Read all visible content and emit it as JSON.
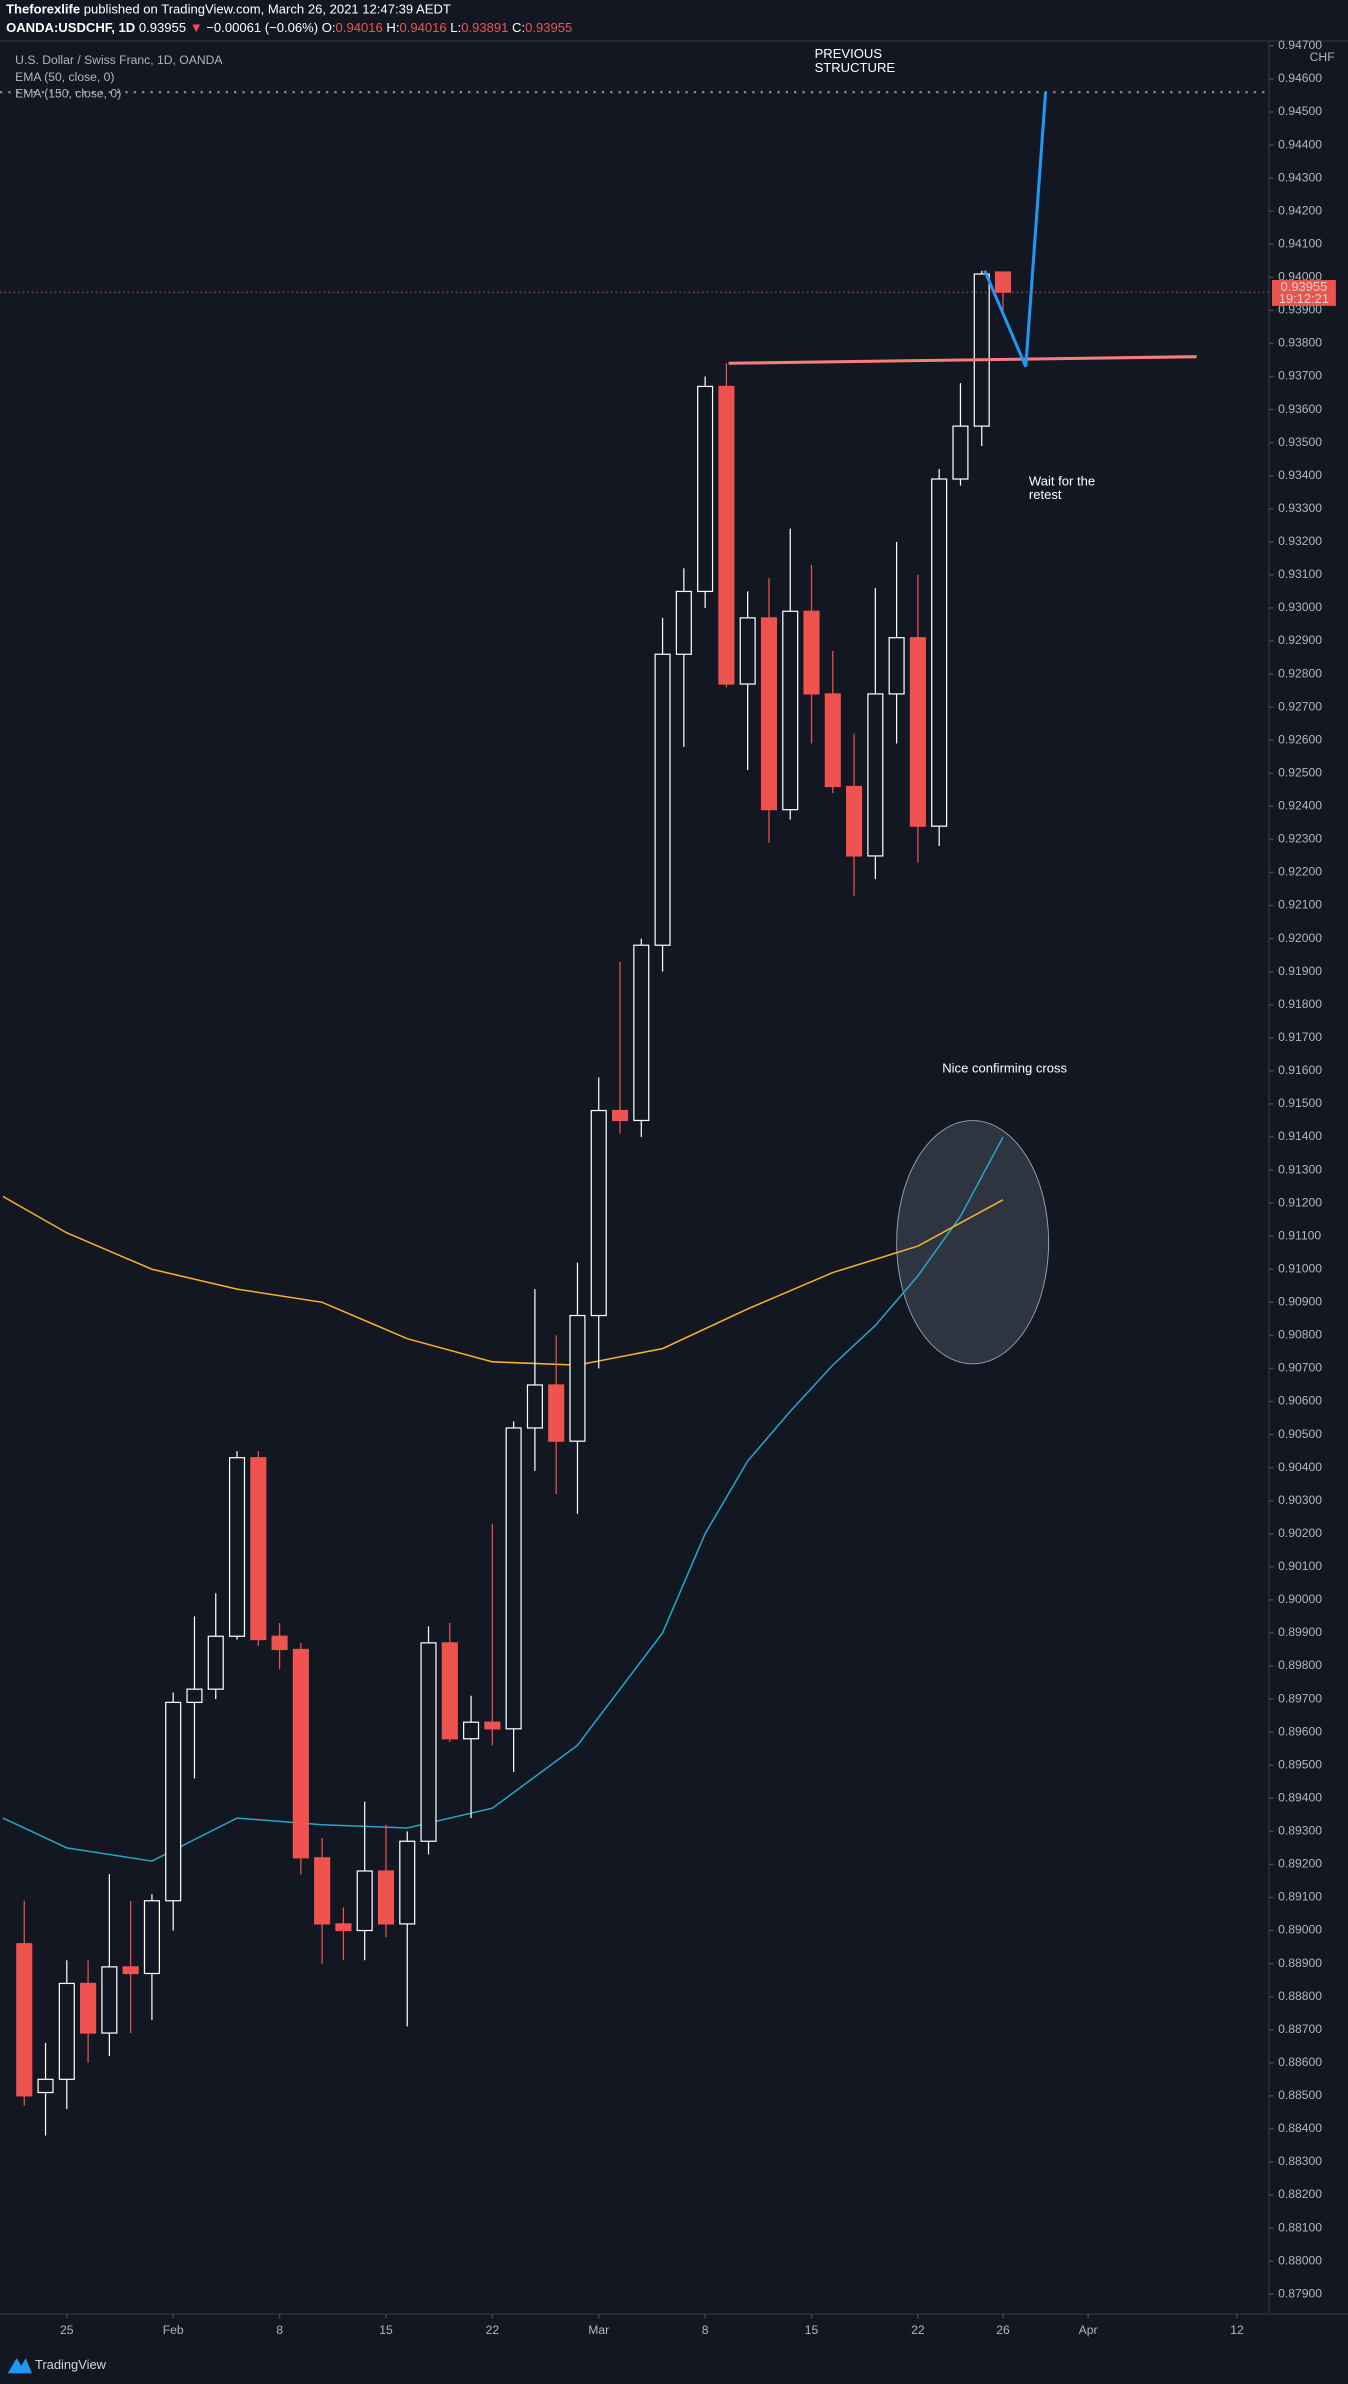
{
  "header": {
    "author": "Theforexlife",
    "published": "published on TradingView.com, March 26, 2021 12:47:39 AEDT",
    "symbol": "OANDA:USDCHF, 1D",
    "last": "0.93955",
    "arrow": "▼",
    "change": "−0.00061 (−0.06%)",
    "ohlc": [
      {
        "label": "O:",
        "value": "0.94016"
      },
      {
        "label": "H:",
        "value": "0.94016"
      },
      {
        "label": "L:",
        "value": "0.93891"
      },
      {
        "label": "C:",
        "value": "0.93955"
      }
    ]
  },
  "annotations": [
    {
      "lines": [
        "PREVIOUS",
        "STRUCTURE"
      ]
    },
    {
      "lines": [
        "Wait for the",
        "retest"
      ]
    },
    {
      "lines": [
        "Nice confirming cross"
      ]
    }
  ],
  "price_label": {
    "value": "0.93955",
    "countdown": "19:12:21"
  },
  "footer": "TradingView",
  "chart_data": {
    "type": "candlestick",
    "title": "U.S. Dollar / Swiss Franc, 1D, OANDA",
    "y_unit": "CHF",
    "up_color": "#ffffff",
    "down_color": "#ef5350",
    "x": [
      -2,
      -1,
      0,
      1,
      2,
      3,
      4,
      5,
      6,
      7,
      8,
      9,
      10,
      11,
      12,
      13,
      14,
      15,
      16,
      17,
      18,
      19,
      20,
      21,
      22,
      23,
      24,
      25,
      26,
      27,
      28,
      29,
      30,
      31,
      32,
      33,
      34,
      35,
      36,
      37,
      38,
      39,
      40,
      41,
      42,
      43,
      44
    ],
    "open": [
      0.8896,
      0.8851,
      0.8855,
      0.8884,
      0.8869,
      0.8889,
      0.8887,
      0.8909,
      0.8969,
      0.8973,
      0.8989,
      0.9043,
      0.8989,
      0.8985,
      0.8922,
      0.8902,
      0.89,
      0.8918,
      0.8902,
      0.8927,
      0.8987,
      0.8958,
      0.8963,
      0.8961,
      0.9052,
      0.9065,
      0.9048,
      0.9086,
      0.9148,
      0.9145,
      0.9198,
      0.9286,
      0.9305,
      0.9367,
      0.9277,
      0.9297,
      0.9239,
      0.9299,
      0.9274,
      0.9246,
      0.9225,
      0.9274,
      0.9291,
      0.9234,
      0.9339,
      0.9355,
      0.94016
    ],
    "high": [
      0.8909,
      0.8866,
      0.8891,
      0.8891,
      0.8917,
      0.8909,
      0.8911,
      0.8972,
      0.8995,
      0.9002,
      0.9045,
      0.9045,
      0.8993,
      0.8987,
      0.8928,
      0.8907,
      0.8939,
      0.8932,
      0.893,
      0.8992,
      0.8993,
      0.8971,
      0.9023,
      0.9054,
      0.9094,
      0.908,
      0.9102,
      0.9158,
      0.9193,
      0.92,
      0.9297,
      0.9312,
      0.937,
      0.9374,
      0.9305,
      0.9309,
      0.9324,
      0.9313,
      0.9287,
      0.9262,
      0.9306,
      0.932,
      0.931,
      0.9342,
      0.9368,
      0.9402,
      0.94016
    ],
    "low": [
      0.8847,
      0.8838,
      0.8846,
      0.886,
      0.8862,
      0.8869,
      0.8873,
      0.89,
      0.8946,
      0.897,
      0.8988,
      0.8986,
      0.8979,
      0.8917,
      0.889,
      0.8891,
      0.8891,
      0.8898,
      0.8871,
      0.8923,
      0.8957,
      0.8934,
      0.8956,
      0.8948,
      0.9039,
      0.9032,
      0.9026,
      0.907,
      0.9141,
      0.914,
      0.919,
      0.9258,
      0.93,
      0.9276,
      0.9251,
      0.9229,
      0.9236,
      0.9259,
      0.9244,
      0.9213,
      0.9218,
      0.9259,
      0.9223,
      0.9228,
      0.9337,
      0.9349,
      0.93891
    ],
    "close": [
      0.885,
      0.8855,
      0.8884,
      0.8869,
      0.8889,
      0.8887,
      0.8909,
      0.8969,
      0.8973,
      0.8989,
      0.9043,
      0.8988,
      0.8985,
      0.8922,
      0.8902,
      0.89,
      0.8918,
      0.8902,
      0.8927,
      0.8987,
      0.8958,
      0.8963,
      0.8961,
      0.9052,
      0.9065,
      0.9048,
      0.9086,
      0.9148,
      0.9145,
      0.9198,
      0.9286,
      0.9305,
      0.9367,
      0.9277,
      0.9297,
      0.9239,
      0.9299,
      0.9274,
      0.9246,
      0.9225,
      0.9274,
      0.9291,
      0.9234,
      0.9339,
      0.9355,
      0.9401,
      0.93955
    ],
    "series": [
      {
        "name": "EMA (50, close, 0)",
        "color": "#26a6c6",
        "x": [
          -3,
          0,
          4,
          8,
          12,
          16,
          20,
          24,
          28,
          30,
          32,
          34,
          36,
          38,
          40,
          42,
          44
        ],
        "values": [
          0.8934,
          0.8925,
          0.8921,
          0.8934,
          0.8932,
          0.8931,
          0.8937,
          0.8956,
          0.899,
          0.902,
          0.9042,
          0.9057,
          0.9071,
          0.9083,
          0.9098,
          0.9116,
          0.914
        ]
      },
      {
        "name": "EMA (150, close, 0)",
        "color": "#f5b330",
        "x": [
          -3,
          0,
          4,
          8,
          12,
          16,
          20,
          24,
          28,
          32,
          36,
          40,
          44
        ],
        "values": [
          0.9122,
          0.9111,
          0.91,
          0.9094,
          0.909,
          0.9079,
          0.9072,
          0.9071,
          0.9076,
          0.9088,
          0.9099,
          0.9107,
          0.9121
        ]
      }
    ],
    "drawings": [
      {
        "color": "#f77c80",
        "x": [
          31.1,
          53.1
        ],
        "values": [
          0.9374,
          0.9376
        ]
      },
      {
        "color": "#2196f3",
        "x": [
          43.14,
          45.07,
          46
        ],
        "values": [
          0.9402,
          0.9373,
          0.9456
        ]
      }
    ],
    "xlim": [
      -3.14,
      56.5
    ],
    "ylim": [
      0.8784,
      0.9471
    ],
    "xticks": [
      {
        "value": 0,
        "label": "25"
      },
      {
        "value": 5,
        "label": "Feb"
      },
      {
        "value": 10,
        "label": "8"
      },
      {
        "value": 15,
        "label": "15"
      },
      {
        "value": 20,
        "label": "22"
      },
      {
        "value": 25,
        "label": "Mar"
      },
      {
        "value": 30,
        "label": "8"
      },
      {
        "value": 35,
        "label": "15"
      },
      {
        "value": 40,
        "label": "22"
      },
      {
        "value": 44,
        "label": "26"
      },
      {
        "value": 48,
        "label": "Apr"
      },
      {
        "value": 55,
        "label": "12"
      }
    ],
    "yticks": [
      {
        "value": 0.879,
        "label": "0.87900"
      },
      {
        "value": 0.88,
        "label": "0.88000"
      },
      {
        "value": 0.881,
        "label": "0.88100"
      },
      {
        "value": 0.882,
        "label": "0.88200"
      },
      {
        "value": 0.883,
        "label": "0.88300"
      },
      {
        "value": 0.884,
        "label": "0.88400"
      },
      {
        "value": 0.885,
        "label": "0.88500"
      },
      {
        "value": 0.886,
        "label": "0.88600"
      },
      {
        "value": 0.887,
        "label": "0.88700"
      },
      {
        "value": 0.888,
        "label": "0.88800"
      },
      {
        "value": 0.889,
        "label": "0.88900"
      },
      {
        "value": 0.89,
        "label": "0.89000"
      },
      {
        "value": 0.891,
        "label": "0.89100"
      },
      {
        "value": 0.892,
        "label": "0.89200"
      },
      {
        "value": 0.893,
        "label": "0.89300"
      },
      {
        "value": 0.894,
        "label": "0.89400"
      },
      {
        "value": 0.895,
        "label": "0.89500"
      },
      {
        "value": 0.896,
        "label": "0.89600"
      },
      {
        "value": 0.897,
        "label": "0.89700"
      },
      {
        "value": 0.898,
        "label": "0.89800"
      },
      {
        "value": 0.899,
        "label": "0.89900"
      },
      {
        "value": 0.9,
        "label": "0.90000"
      },
      {
        "value": 0.901,
        "label": "0.90100"
      },
      {
        "value": 0.902,
        "label": "0.90200"
      },
      {
        "value": 0.903,
        "label": "0.90300"
      },
      {
        "value": 0.904,
        "label": "0.90400"
      },
      {
        "value": 0.905,
        "label": "0.90500"
      },
      {
        "value": 0.906,
        "label": "0.90600"
      },
      {
        "value": 0.907,
        "label": "0.90700"
      },
      {
        "value": 0.908,
        "label": "0.90800"
      },
      {
        "value": 0.909,
        "label": "0.90900"
      },
      {
        "value": 0.91,
        "label": "0.91000"
      },
      {
        "value": 0.911,
        "label": "0.91100"
      },
      {
        "value": 0.912,
        "label": "0.91200"
      },
      {
        "value": 0.913,
        "label": "0.91300"
      },
      {
        "value": 0.914,
        "label": "0.91400"
      },
      {
        "value": 0.915,
        "label": "0.91500"
      },
      {
        "value": 0.916,
        "label": "0.91600"
      },
      {
        "value": 0.917,
        "label": "0.91700"
      },
      {
        "value": 0.918,
        "label": "0.91800"
      },
      {
        "value": 0.919,
        "label": "0.91900"
      },
      {
        "value": 0.92,
        "label": "0.92000"
      },
      {
        "value": 0.921,
        "label": "0.92100"
      },
      {
        "value": 0.922,
        "label": "0.92200"
      },
      {
        "value": 0.923,
        "label": "0.92300"
      },
      {
        "value": 0.924,
        "label": "0.92400"
      },
      {
        "value": 0.925,
        "label": "0.92500"
      },
      {
        "value": 0.926,
        "label": "0.92600"
      },
      {
        "value": 0.927,
        "label": "0.92700"
      },
      {
        "value": 0.928,
        "label": "0.92800"
      },
      {
        "value": 0.929,
        "label": "0.92900"
      },
      {
        "value": 0.93,
        "label": "0.93000"
      },
      {
        "value": 0.931,
        "label": "0.93100"
      },
      {
        "value": 0.932,
        "label": "0.93200"
      },
      {
        "value": 0.933,
        "label": "0.93300"
      },
      {
        "value": 0.934,
        "label": "0.93400"
      },
      {
        "value": 0.935,
        "label": "0.93500"
      },
      {
        "value": 0.936,
        "label": "0.93600"
      },
      {
        "value": 0.937,
        "label": "0.93700"
      },
      {
        "value": 0.938,
        "label": "0.93800"
      },
      {
        "value": 0.939,
        "label": "0.93900"
      },
      {
        "value": 0.94,
        "label": "0.94000"
      },
      {
        "value": 0.941,
        "label": "0.94100"
      },
      {
        "value": 0.942,
        "label": "0.94200"
      },
      {
        "value": 0.943,
        "label": "0.94300"
      },
      {
        "value": 0.944,
        "label": "0.94400"
      },
      {
        "value": 0.945,
        "label": "0.94500"
      },
      {
        "value": 0.946,
        "label": "0.94600"
      },
      {
        "value": 0.947,
        "label": "0.94700"
      }
    ],
    "level_line": {
      "value": 0.9456,
      "color": "#8a93a6"
    }
  }
}
